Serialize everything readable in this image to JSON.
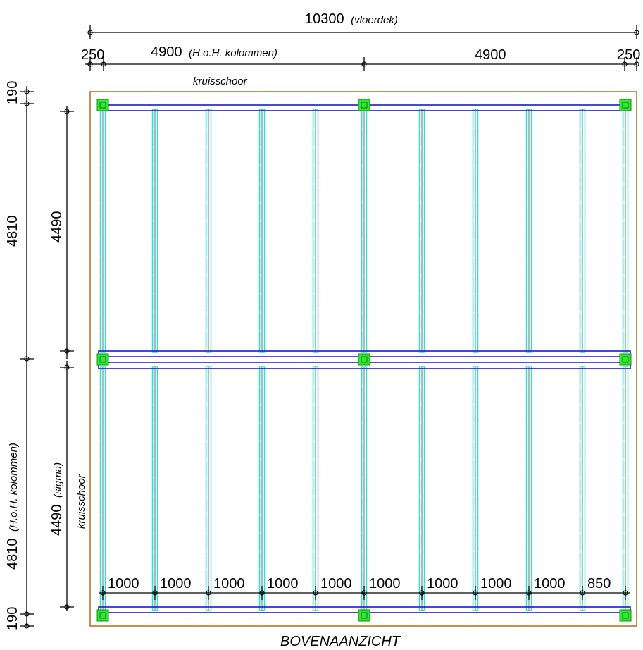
{
  "diagram": {
    "title": "BOVENAANZICHT",
    "top_dimension": {
      "value": "10300",
      "note": "(vloerdek)"
    },
    "second_row": [
      {
        "value": "250"
      },
      {
        "value": "4900",
        "note": "(H.o.H. kolommen)"
      },
      {
        "value": "4900"
      },
      {
        "value": "250"
      }
    ],
    "top_brace_label": "kruisschoor",
    "left_outer": [
      {
        "value": "190"
      },
      {
        "value": "4810"
      },
      {
        "value": "4810",
        "note": "(H.o.H. kolommen)"
      },
      {
        "value": "190"
      }
    ],
    "left_inner": [
      {
        "value": "4490"
      },
      {
        "value": "4490",
        "note": "(sigma)"
      }
    ],
    "left_brace_label": "kruisschoor",
    "joist_spacing": [
      "1000",
      "1000",
      "1000",
      "1000",
      "1000",
      "1000",
      "1000",
      "1000",
      "1000",
      "850"
    ],
    "colors": {
      "deck_outline": "#b8732a",
      "beams": "#1a1acc",
      "joists": "#33dede",
      "columns": "#33e633"
    }
  }
}
